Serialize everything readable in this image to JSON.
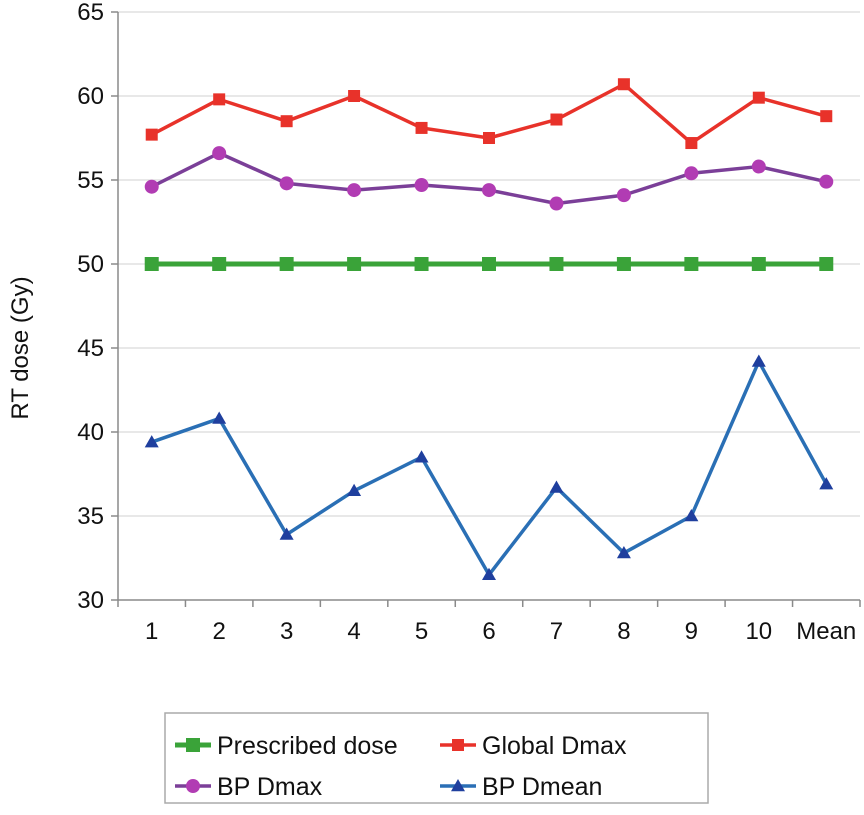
{
  "chart_data": {
    "type": "line",
    "title": "",
    "xlabel": "",
    "ylabel": "RT dose (Gy)",
    "ylim": [
      30,
      65
    ],
    "yticks": [
      30,
      35,
      40,
      45,
      50,
      55,
      60,
      65
    ],
    "grid": "horizontal",
    "legend_position": "bottom",
    "categories": [
      "1",
      "2",
      "3",
      "4",
      "5",
      "6",
      "7",
      "8",
      "9",
      "10",
      "Mean"
    ],
    "series": [
      {
        "name": "Prescribed dose",
        "color": "#3aa339",
        "marker": "square",
        "values": [
          50,
          50,
          50,
          50,
          50,
          50,
          50,
          50,
          50,
          50,
          50
        ]
      },
      {
        "name": "Global Dmax",
        "color": "#e8322a",
        "marker": "square",
        "values": [
          57.7,
          59.8,
          58.5,
          60.0,
          58.1,
          57.5,
          58.6,
          60.7,
          57.2,
          59.9,
          58.8
        ]
      },
      {
        "name": "BP Dmax",
        "color": "#7b3f98",
        "marker_color": "#b13cb3",
        "marker": "circle",
        "values": [
          54.6,
          56.6,
          54.8,
          54.4,
          54.7,
          54.4,
          53.6,
          54.1,
          55.4,
          55.8,
          54.9
        ]
      },
      {
        "name": "BP Dmean",
        "color": "#2a6fb5",
        "marker_color": "#1f3f9e",
        "marker": "triangle",
        "values": [
          39.4,
          40.8,
          33.9,
          36.5,
          38.5,
          31.5,
          36.7,
          32.8,
          35.0,
          44.2,
          36.9
        ]
      }
    ]
  }
}
